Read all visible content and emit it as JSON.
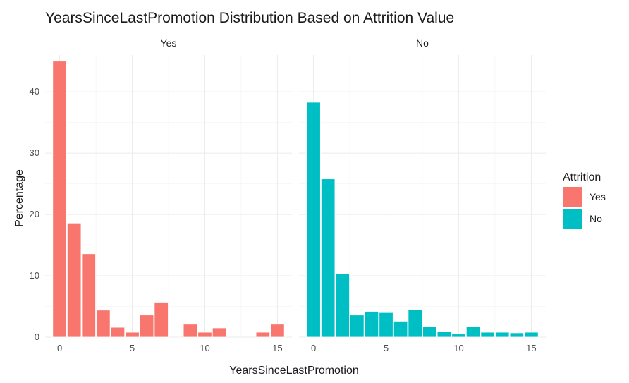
{
  "chart_data": {
    "type": "bar",
    "title": "YearsSinceLastPromotion Distribution Based on Attrition Value",
    "xlabel": "YearsSinceLastPromotion",
    "ylabel": "Percentage",
    "xlim": [
      -1,
      16
    ],
    "ylim": [
      0,
      46
    ],
    "xticks": [
      0,
      5,
      10,
      15
    ],
    "yticks": [
      0,
      10,
      20,
      30,
      40
    ],
    "grid": true,
    "legend": {
      "title": "Attrition",
      "position": "right",
      "entries": [
        {
          "label": "Yes",
          "color": "#F8766D"
        },
        {
          "label": "No",
          "color": "#00BFC4"
        }
      ]
    },
    "panels": [
      {
        "strip": "Yes",
        "color": "#F8766D",
        "x": [
          0,
          1,
          2,
          3,
          4,
          5,
          6,
          7,
          9,
          10,
          11,
          14,
          15
        ],
        "values": [
          45.0,
          18.6,
          13.6,
          4.4,
          1.6,
          0.8,
          3.6,
          5.7,
          2.1,
          0.8,
          1.5,
          0.8,
          2.1
        ]
      },
      {
        "strip": "No",
        "color": "#00BFC4",
        "x": [
          0,
          1,
          2,
          3,
          4,
          5,
          6,
          7,
          8,
          9,
          10,
          11,
          12,
          13,
          14,
          15
        ],
        "values": [
          38.3,
          25.8,
          10.3,
          3.6,
          4.2,
          4.0,
          2.6,
          4.5,
          1.7,
          0.9,
          0.5,
          1.7,
          0.8,
          0.8,
          0.7,
          0.8
        ]
      }
    ]
  }
}
